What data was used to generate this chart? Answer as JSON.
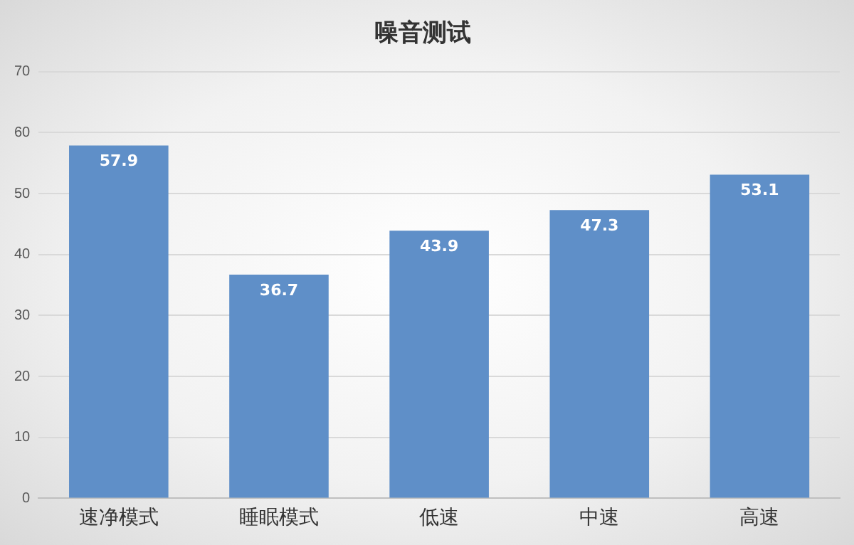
{
  "chart_data": {
    "type": "bar",
    "title": "噪音测试",
    "categories": [
      "速净模式",
      "睡眠模式",
      "低速",
      "中速",
      "高速"
    ],
    "values": [
      57.9,
      36.7,
      43.9,
      47.3,
      53.1
    ],
    "color": "#5f8fc8",
    "ylim": [
      0,
      70
    ],
    "yticks": [
      0,
      10,
      20,
      30,
      40,
      50,
      60,
      70
    ],
    "grid": "y",
    "data_labels": true,
    "legend": false
  }
}
